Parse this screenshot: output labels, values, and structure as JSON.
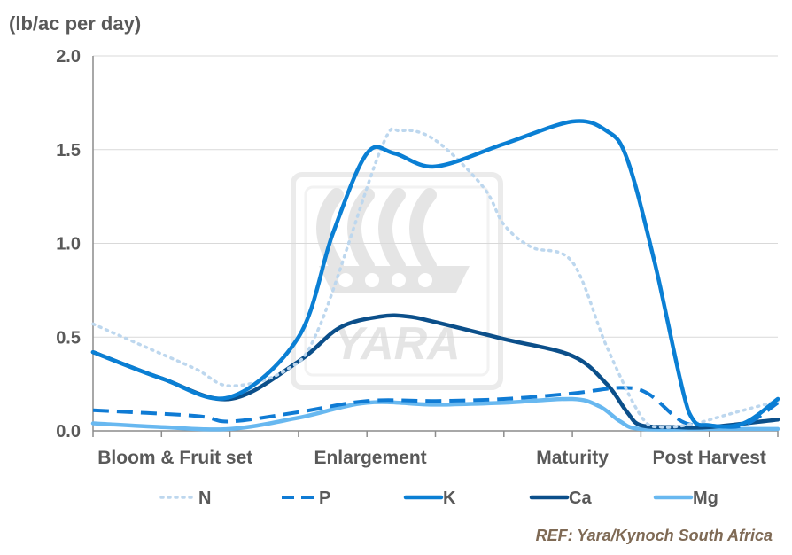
{
  "chart_data": {
    "type": "line",
    "ylabel": "(lb/ac per day)",
    "ylim": [
      0,
      2.0
    ],
    "yticks": [
      "0.0",
      "0.5",
      "1.0",
      "1.5",
      "2.0"
    ],
    "xlim": [
      0,
      10
    ],
    "phase_labels": [
      {
        "label": "Bloom & Fruit set",
        "x": 1.2
      },
      {
        "label": "Enlargement",
        "x": 4.05
      },
      {
        "label": "Maturity",
        "x": 7.0
      },
      {
        "label": "Post Harvest",
        "x": 9.0
      }
    ],
    "series": [
      {
        "name": "N",
        "style": "dotted",
        "color": "#bdd7ee",
        "x": [
          0,
          0.75,
          1.5,
          2.0,
          2.8,
          3.3,
          4.2,
          4.5,
          5.0,
          5.7,
          6.0,
          6.4,
          7.0,
          7.5,
          8.0,
          8.3,
          8.8,
          9.2,
          10.0
        ],
        "y": [
          0.57,
          0.45,
          0.33,
          0.24,
          0.32,
          0.55,
          1.5,
          1.6,
          1.55,
          1.3,
          1.1,
          0.98,
          0.9,
          0.45,
          0.08,
          0.02,
          0.04,
          0.08,
          0.16
        ]
      },
      {
        "name": "P",
        "style": "dashed",
        "color": "#0f7bd4",
        "x": [
          0,
          1.5,
          2.0,
          3.0,
          4.0,
          5.0,
          6.0,
          7.0,
          7.7,
          8.1,
          8.6,
          9.0,
          9.5,
          10.0
        ],
        "y": [
          0.11,
          0.08,
          0.05,
          0.1,
          0.16,
          0.16,
          0.17,
          0.2,
          0.23,
          0.2,
          0.05,
          0.03,
          0.03,
          0.15
        ]
      },
      {
        "name": "K",
        "style": "solid",
        "color": "#0a7fd4",
        "x": [
          0,
          1.0,
          2.0,
          3.0,
          3.5,
          4.0,
          4.4,
          5.0,
          6.0,
          7.0,
          7.5,
          7.8,
          8.2,
          8.7,
          9.0,
          9.5,
          10.0
        ],
        "y": [
          0.42,
          0.28,
          0.18,
          0.5,
          1.05,
          1.48,
          1.48,
          1.41,
          1.53,
          1.65,
          1.6,
          1.45,
          0.9,
          0.1,
          0.03,
          0.04,
          0.17
        ]
      },
      {
        "name": "Ca",
        "style": "solid",
        "color": "#0b4f8a",
        "x": [
          0,
          1.0,
          2.0,
          3.0,
          3.6,
          4.2,
          4.6,
          5.0,
          6.0,
          7.0,
          7.5,
          7.8,
          8.0,
          8.5,
          9.0,
          10.0
        ],
        "y": [
          0.42,
          0.28,
          0.17,
          0.37,
          0.55,
          0.61,
          0.61,
          0.58,
          0.49,
          0.4,
          0.25,
          0.1,
          0.03,
          0.02,
          0.02,
          0.06
        ]
      },
      {
        "name": "Mg",
        "style": "solid",
        "color": "#68b8f0",
        "x": [
          0,
          1.0,
          2.0,
          3.0,
          4.0,
          5.0,
          6.0,
          7.0,
          7.4,
          7.7,
          8.0,
          9.0,
          10.0
        ],
        "y": [
          0.04,
          0.02,
          0.01,
          0.07,
          0.15,
          0.14,
          0.15,
          0.17,
          0.13,
          0.05,
          0.01,
          0.01,
          0.01
        ]
      }
    ]
  },
  "watermark": "YARA",
  "reference": "REF: Yara/Kynoch South Africa"
}
